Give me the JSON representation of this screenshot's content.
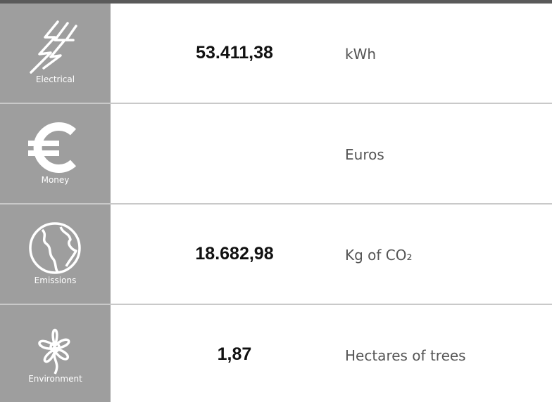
{
  "rows": [
    {
      "icon_label": "Electrical",
      "value": "53.411,38",
      "unit": "kWh"
    },
    {
      "icon_label": "Money",
      "unit": "Euros"
    },
    {
      "icon_label": "Emissions",
      "value": "18.682,98",
      "unit": "Kg of CO₂"
    },
    {
      "icon_label": "Environment",
      "value": "1,87",
      "unit": "Hectares of trees"
    }
  ]
}
